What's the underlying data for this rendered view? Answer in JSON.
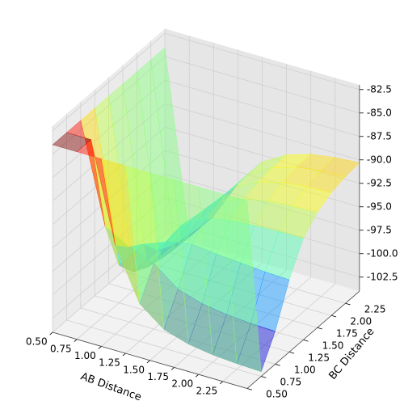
{
  "chart_data": {
    "type": "surface3d",
    "xlabel": "AB Distance",
    "ylabel": "BC Distance",
    "x": [
      0.5,
      0.75,
      1.0,
      1.25,
      1.5,
      1.75,
      2.0,
      2.25,
      2.5
    ],
    "y": [
      0.5,
      0.75,
      1.0,
      1.25,
      1.5,
      1.75,
      2.0,
      2.25,
      2.5
    ],
    "z": [
      [
        -84,
        -84,
        -84,
        -84,
        -84,
        -84,
        -84,
        -84,
        -84
      ],
      [
        -84,
        -84,
        -94.5,
        -100,
        -102,
        -102.8,
        -103.2,
        -103.4,
        -103.5
      ],
      [
        -84,
        -94.5,
        -96,
        -97,
        -99,
        -99.8,
        -100.2,
        -100.4,
        -100.5
      ],
      [
        -84,
        -100,
        -97,
        -96,
        -95.5,
        -95.8,
        -96,
        -96.2,
        -96.3
      ],
      [
        -84,
        -102,
        -99,
        -95.5,
        -94,
        -93.5,
        -93.3,
        -93.2,
        -93.2
      ],
      [
        -84,
        -102.8,
        -99.8,
        -95.8,
        -93.5,
        -92.5,
        -92,
        -91.8,
        -91.7
      ],
      [
        -84,
        -103.2,
        -100.2,
        -96,
        -93.3,
        -92,
        -91.3,
        -91,
        -90.9
      ],
      [
        -84,
        -103.4,
        -100.4,
        -96.2,
        -93.2,
        -91.8,
        -91,
        -90.6,
        -90.5
      ],
      [
        -84,
        -103.5,
        -100.5,
        -96.3,
        -93.2,
        -91.7,
        -90.9,
        -90.5,
        -90.3
      ]
    ],
    "colormap": "jet",
    "xlim": [
      0.5,
      2.5
    ],
    "ylim": [
      0.5,
      2.5
    ],
    "zlim": [
      -104,
      -82
    ],
    "xticks": [
      {
        "value": 0.5,
        "label": "0.50"
      },
      0.75,
      {
        "value": 1.0,
        "label": "1.00"
      },
      1.25,
      {
        "value": 1.5,
        "label": "1.50"
      },
      1.75,
      {
        "value": 2.0,
        "label": "2.00"
      },
      2.25
    ],
    "yticks": [
      {
        "value": 0.5,
        "label": "0.50"
      },
      0.75,
      {
        "value": 1.0,
        "label": "1.00"
      },
      1.25,
      {
        "value": 1.5,
        "label": "1.50"
      },
      1.75,
      {
        "value": 2.0,
        "label": "2.00"
      },
      2.25
    ],
    "zticks": [
      -102.5,
      {
        "value": -100.0,
        "label": "-100.0"
      },
      -97.5,
      {
        "value": -95.0,
        "label": "-95.0"
      },
      -92.5,
      {
        "value": -90.0,
        "label": "-90.0"
      },
      -87.5,
      {
        "value": -85.0,
        "label": "-85.0"
      },
      -82.5
    ],
    "grid": true
  }
}
